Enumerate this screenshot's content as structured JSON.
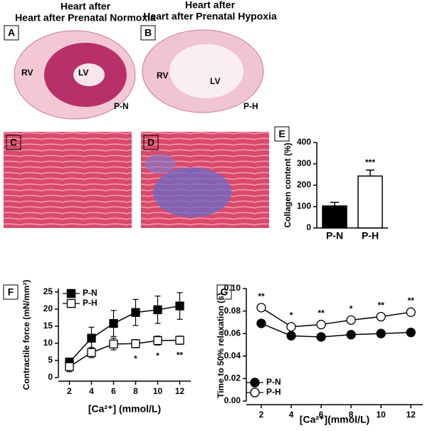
{
  "panels": [
    {
      "letter": "A",
      "title": "Heart after Prenatal Normoxia",
      "labels": [
        "RV",
        "LV",
        "P-N"
      ]
    },
    {
      "letter": "B",
      "title": "Heart after Prenatal Hypoxia",
      "labels": [
        "RV",
        "LV",
        "P-H"
      ]
    },
    {
      "letter": "C"
    },
    {
      "letter": "D"
    }
  ],
  "chart_data": [
    {
      "type": "bar",
      "panel": "E",
      "ylabel": "Collagen content (%)",
      "categories": [
        "P-N",
        "P-H"
      ],
      "values": [
        103,
        243
      ],
      "errors": [
        17,
        28
      ],
      "colors": [
        "#000000",
        "#ffffff"
      ],
      "significance": [
        null,
        "***"
      ],
      "ylim": [
        0,
        400
      ],
      "yticks": [
        0,
        100,
        200,
        300,
        400
      ]
    },
    {
      "type": "line",
      "panel": "F",
      "ylabel": "Contractile force (mN/mm²)",
      "xlabel": "[Ca²⁺] (mmol/L)",
      "x": [
        2,
        4,
        6,
        8,
        10,
        12
      ],
      "xlim": [
        1,
        13
      ],
      "xticks": [
        2,
        4,
        6,
        8,
        10,
        12
      ],
      "ylim": [
        0,
        26
      ],
      "yticks": [
        0,
        5,
        10,
        15,
        20,
        25
      ],
      "legend": "top-left",
      "marker": "square",
      "significance_side": "below",
      "series": [
        {
          "name": "P-N",
          "color": "#000000",
          "values": [
            4.5,
            11.5,
            15.8,
            19,
            19.8,
            20.9
          ],
          "errors": [
            1.2,
            3.2,
            3.8,
            3.8,
            4,
            3.9
          ]
        },
        {
          "name": "P-H",
          "color": "#ffffff",
          "values": [
            3.2,
            7.3,
            9.8,
            9.9,
            10.8,
            10.9
          ],
          "errors": [
            1.5,
            1.5,
            1.7,
            1.2,
            1.3,
            1.2
          ]
        }
      ],
      "significance": [
        null,
        null,
        null,
        "*",
        "*",
        "**"
      ]
    },
    {
      "type": "line",
      "panel": "G",
      "ylabel": "Time to 50% relaxation (s)",
      "xlabel": "[Ca²⁺](mmol/L)",
      "x": [
        2,
        4,
        6,
        8,
        10,
        12
      ],
      "xlim": [
        1,
        12.8
      ],
      "xticks": [
        2,
        4,
        6,
        8,
        10,
        12
      ],
      "ylim": [
        0,
        0.1
      ],
      "yticks": [
        {
          "value": 0,
          "label": "0.00"
        },
        {
          "value": 0.02,
          "label": "0.02"
        },
        {
          "value": 0.04,
          "label": "0.04"
        },
        {
          "value": 0.06,
          "label": "0.06"
        },
        {
          "value": 0.08,
          "label": "0.08"
        },
        {
          "value": 0.1,
          "label": "0.10"
        }
      ],
      "legend": "bottom-left",
      "marker": "circle",
      "significance_side": "above",
      "series": [
        {
          "name": "P-N",
          "color": "#000000",
          "values": [
            0.069,
            0.058,
            0.057,
            0.059,
            0.06,
            0.061
          ],
          "errors": [
            0.0015,
            0.0015,
            0.0015,
            0.0015,
            0.002,
            0.002
          ]
        },
        {
          "name": "P-H",
          "color": "#ffffff",
          "values": [
            0.083,
            0.066,
            0.068,
            0.072,
            0.075,
            0.079
          ],
          "errors": [
            0.002,
            0.002,
            0.002,
            0.002,
            0.002,
            0.002
          ]
        }
      ],
      "significance": [
        "**",
        "*",
        "**",
        "*",
        "**",
        "**"
      ]
    }
  ]
}
